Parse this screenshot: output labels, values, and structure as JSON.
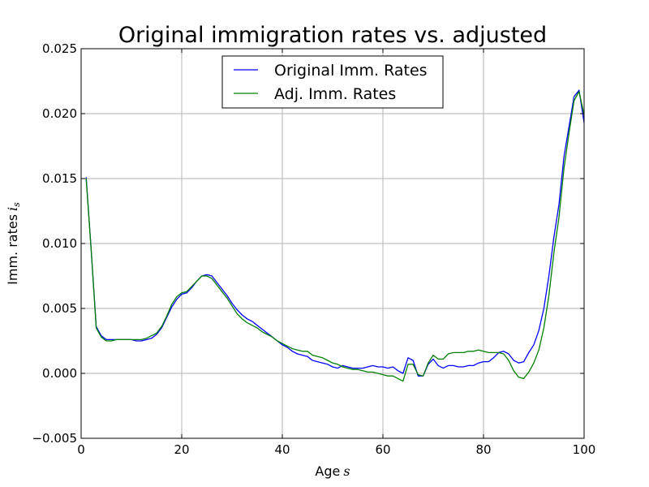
{
  "chart_data": {
    "type": "line",
    "title": "Original immigration rates vs. adjusted",
    "xlabel": "Age",
    "xlabel_symbol": "s",
    "ylabel": "Imm. rates",
    "ylabel_symbol": "i",
    "ylabel_subscript": "s",
    "xlim": [
      0,
      100
    ],
    "ylim": [
      -0.005,
      0.025
    ],
    "xticks": [
      0,
      20,
      40,
      60,
      80,
      100
    ],
    "xtick_labels": [
      "0",
      "20",
      "40",
      "60",
      "80",
      "100"
    ],
    "yticks": [
      -0.005,
      0.0,
      0.005,
      0.01,
      0.015,
      0.02,
      0.025
    ],
    "ytick_labels": [
      "−0.005",
      "0.000",
      "0.005",
      "0.010",
      "0.015",
      "0.020",
      "0.025"
    ],
    "grid": true,
    "legend_position": "top-center",
    "x": [
      1,
      2,
      3,
      4,
      5,
      6,
      7,
      8,
      9,
      10,
      11,
      12,
      13,
      14,
      15,
      16,
      17,
      18,
      19,
      20,
      21,
      22,
      23,
      24,
      25,
      26,
      27,
      28,
      29,
      30,
      31,
      32,
      33,
      34,
      35,
      36,
      37,
      38,
      39,
      40,
      41,
      42,
      43,
      44,
      45,
      46,
      47,
      48,
      49,
      50,
      51,
      52,
      53,
      54,
      55,
      56,
      57,
      58,
      59,
      60,
      61,
      62,
      63,
      64,
      65,
      66,
      67,
      68,
      69,
      70,
      71,
      72,
      73,
      74,
      75,
      76,
      77,
      78,
      79,
      80,
      81,
      82,
      83,
      84,
      85,
      86,
      87,
      88,
      89,
      90,
      91,
      92,
      93,
      94,
      95,
      96,
      97,
      98,
      99,
      100
    ],
    "series": [
      {
        "name": "Original Imm. Rates",
        "color": "#0000ff",
        "values": [
          0.0151,
          0.0095,
          0.0036,
          0.0029,
          0.0026,
          0.0026,
          0.0026,
          0.0026,
          0.0026,
          0.0026,
          0.0025,
          0.0025,
          0.0026,
          0.0027,
          0.003,
          0.0035,
          0.0043,
          0.0051,
          0.0057,
          0.0061,
          0.0062,
          0.0066,
          0.0071,
          0.0075,
          0.0076,
          0.0075,
          0.007,
          0.0065,
          0.006,
          0.0054,
          0.0049,
          0.0045,
          0.0042,
          0.004,
          0.0037,
          0.0034,
          0.0031,
          0.0028,
          0.0025,
          0.0022,
          0.002,
          0.0017,
          0.0015,
          0.0014,
          0.0013,
          0.001,
          0.0009,
          0.0008,
          0.0007,
          0.0005,
          0.0004,
          0.0006,
          0.0005,
          0.0004,
          0.0004,
          0.0004,
          0.0005,
          0.0006,
          0.0005,
          0.0005,
          0.0004,
          0.0005,
          0.0002,
          0.0,
          0.0012,
          0.001,
          -0.0002,
          -0.0002,
          0.0007,
          0.0011,
          0.0006,
          0.0004,
          0.0006,
          0.0006,
          0.0005,
          0.0005,
          0.0006,
          0.0006,
          0.0008,
          0.0009,
          0.0009,
          0.0012,
          0.0016,
          0.0017,
          0.0015,
          0.001,
          0.0008,
          0.0009,
          0.0016,
          0.0022,
          0.0033,
          0.005,
          0.0075,
          0.0105,
          0.013,
          0.0167,
          0.019,
          0.0213,
          0.0218,
          0.0193
        ]
      },
      {
        "name": "Adj. Imm. Rates",
        "color": "#008000",
        "values": [
          0.015,
          0.0095,
          0.0035,
          0.0028,
          0.0025,
          0.0025,
          0.0026,
          0.0026,
          0.0026,
          0.0026,
          0.0026,
          0.0026,
          0.0027,
          0.0029,
          0.0031,
          0.0036,
          0.0044,
          0.0053,
          0.0059,
          0.0062,
          0.0063,
          0.0067,
          0.0071,
          0.0075,
          0.0075,
          0.0073,
          0.0068,
          0.0063,
          0.0058,
          0.0052,
          0.0046,
          0.0042,
          0.0039,
          0.0037,
          0.0035,
          0.0032,
          0.003,
          0.0028,
          0.0025,
          0.0023,
          0.0021,
          0.0019,
          0.0018,
          0.0017,
          0.0017,
          0.0014,
          0.0013,
          0.0012,
          0.001,
          0.0008,
          0.0007,
          0.0005,
          0.0004,
          0.0003,
          0.0003,
          0.0002,
          0.0001,
          0.0001,
          0.0,
          -0.0001,
          -0.0002,
          -0.0002,
          -0.0004,
          -0.0006,
          0.0007,
          0.0007,
          -0.0001,
          -0.0002,
          0.0008,
          0.0014,
          0.0011,
          0.0011,
          0.0015,
          0.0016,
          0.0016,
          0.0016,
          0.0017,
          0.0017,
          0.0018,
          0.0017,
          0.0016,
          0.0016,
          0.0016,
          0.0015,
          0.001,
          0.0002,
          -0.0003,
          -0.0004,
          0.0001,
          0.0008,
          0.0018,
          0.0035,
          0.006,
          0.0093,
          0.012,
          0.0158,
          0.0185,
          0.021,
          0.0217,
          0.0199
        ]
      }
    ]
  }
}
